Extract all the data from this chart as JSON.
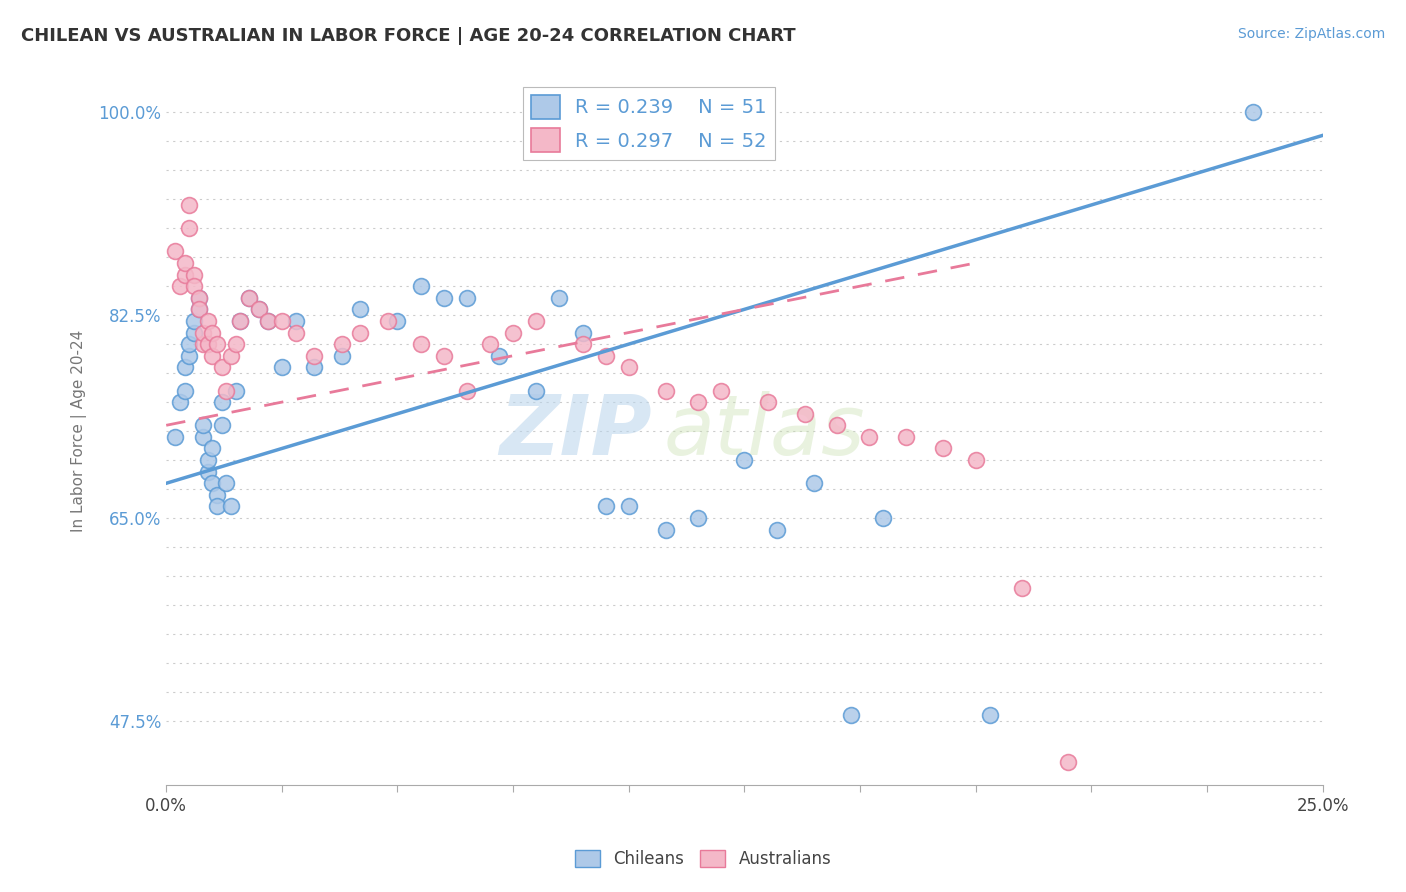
{
  "title": "CHILEAN VS AUSTRALIAN IN LABOR FORCE | AGE 20-24 CORRELATION CHART",
  "source_text": "Source: ZipAtlas.com",
  "ylabel": "In Labor Force | Age 20-24",
  "xmin": 0.0,
  "xmax": 0.25,
  "ymin": 0.42,
  "ymax": 1.03,
  "chilean_color": "#aec9e8",
  "chilean_edge_color": "#5b9bd5",
  "australian_color": "#f4b8c8",
  "australian_edge_color": "#e87a9a",
  "chilean_R": 0.239,
  "chilean_N": 51,
  "australian_R": 0.297,
  "australian_N": 52,
  "trend_chilean_color": "#5b9bd5",
  "trend_australian_color": "#e87a9a",
  "background_color": "#ffffff",
  "grid_color": "#cccccc",
  "watermark_zip": "ZIP",
  "watermark_atlas": "atlas",
  "chilean_scatter_x": [
    0.002,
    0.003,
    0.004,
    0.004,
    0.005,
    0.005,
    0.006,
    0.006,
    0.007,
    0.007,
    0.008,
    0.008,
    0.009,
    0.009,
    0.01,
    0.01,
    0.011,
    0.011,
    0.012,
    0.012,
    0.013,
    0.014,
    0.015,
    0.016,
    0.018,
    0.02,
    0.022,
    0.025,
    0.028,
    0.032,
    0.038,
    0.042,
    0.05,
    0.055,
    0.06,
    0.065,
    0.072,
    0.08,
    0.085,
    0.09,
    0.095,
    0.1,
    0.108,
    0.115,
    0.125,
    0.132,
    0.14,
    0.148,
    0.155,
    0.178,
    0.235
  ],
  "chilean_scatter_y": [
    0.72,
    0.75,
    0.76,
    0.78,
    0.79,
    0.8,
    0.81,
    0.82,
    0.83,
    0.84,
    0.72,
    0.73,
    0.69,
    0.7,
    0.71,
    0.68,
    0.67,
    0.66,
    0.75,
    0.73,
    0.68,
    0.66,
    0.76,
    0.82,
    0.84,
    0.83,
    0.82,
    0.78,
    0.82,
    0.78,
    0.79,
    0.83,
    0.82,
    0.85,
    0.84,
    0.84,
    0.79,
    0.76,
    0.84,
    0.81,
    0.66,
    0.66,
    0.64,
    0.65,
    0.7,
    0.64,
    0.68,
    0.48,
    0.65,
    0.48,
    1.0
  ],
  "australian_scatter_x": [
    0.002,
    0.003,
    0.004,
    0.004,
    0.005,
    0.005,
    0.006,
    0.006,
    0.007,
    0.007,
    0.008,
    0.008,
    0.009,
    0.009,
    0.01,
    0.01,
    0.011,
    0.012,
    0.013,
    0.014,
    0.015,
    0.016,
    0.018,
    0.02,
    0.022,
    0.025,
    0.028,
    0.032,
    0.038,
    0.042,
    0.048,
    0.055,
    0.06,
    0.065,
    0.07,
    0.075,
    0.08,
    0.09,
    0.095,
    0.1,
    0.108,
    0.115,
    0.12,
    0.13,
    0.138,
    0.145,
    0.152,
    0.16,
    0.168,
    0.175,
    0.185,
    0.195
  ],
  "australian_scatter_y": [
    0.88,
    0.85,
    0.86,
    0.87,
    0.9,
    0.92,
    0.86,
    0.85,
    0.84,
    0.83,
    0.8,
    0.81,
    0.82,
    0.8,
    0.81,
    0.79,
    0.8,
    0.78,
    0.76,
    0.79,
    0.8,
    0.82,
    0.84,
    0.83,
    0.82,
    0.82,
    0.81,
    0.79,
    0.8,
    0.81,
    0.82,
    0.8,
    0.79,
    0.76,
    0.8,
    0.81,
    0.82,
    0.8,
    0.79,
    0.78,
    0.76,
    0.75,
    0.76,
    0.75,
    0.74,
    0.73,
    0.72,
    0.72,
    0.71,
    0.7,
    0.59,
    0.44
  ],
  "trend_chilean_x0": 0.0,
  "trend_chilean_x1": 0.25,
  "trend_chilean_y0": 0.68,
  "trend_chilean_y1": 0.98,
  "trend_australian_x0": 0.0,
  "trend_australian_x1": 0.175,
  "trend_australian_y0": 0.73,
  "trend_australian_y1": 0.87
}
